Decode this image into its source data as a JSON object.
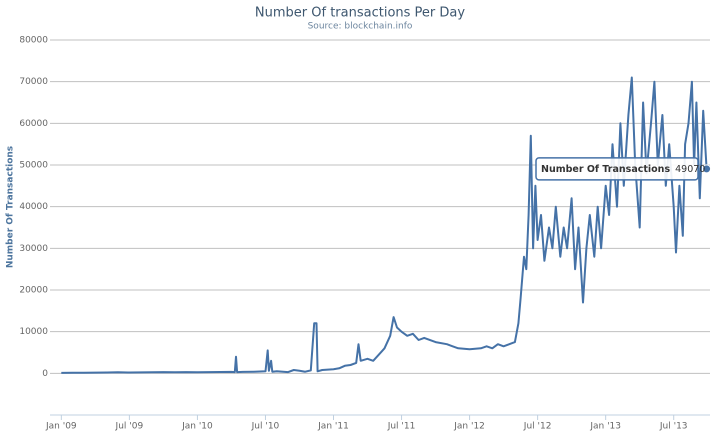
{
  "chart_data": {
    "type": "line",
    "title": "Number Of transactions Per Day",
    "subtitle": "Source: blockchain.info",
    "y_label": "Number Of Transactions",
    "x": [
      0,
      1,
      2,
      3,
      4,
      5,
      6,
      7,
      8,
      9,
      10,
      11,
      12,
      13,
      14,
      15,
      15.3,
      15.4,
      15.5,
      16,
      17,
      18,
      18.2,
      18.3,
      18.5,
      18.6,
      19,
      20,
      20.5,
      21,
      21.5,
      22,
      22.3,
      22.5,
      22.6,
      23,
      24,
      24.5,
      25,
      25.5,
      26,
      26.2,
      26.4,
      27,
      27.5,
      28,
      28.5,
      29,
      29.3,
      29.6,
      30,
      30.5,
      31,
      31.5,
      32,
      33,
      34,
      34.5,
      35,
      36,
      37,
      37.5,
      38,
      38.5,
      39,
      39.5,
      40,
      40.3,
      40.5,
      40.8,
      41,
      41.2,
      41.4,
      41.6,
      41.8,
      42,
      42.3,
      42.6,
      43,
      43.3,
      43.6,
      44,
      44.3,
      44.6,
      45,
      45.3,
      45.6,
      46,
      46.3,
      46.6,
      47,
      47.3,
      47.6,
      48,
      48.3,
      48.6,
      49,
      49.3,
      49.6,
      50,
      50.3,
      50.6,
      51,
      51.3,
      51.6,
      52,
      52.3,
      52.6,
      53,
      53.3,
      53.6,
      54,
      54.2,
      54.5,
      54.8,
      55,
      55.3,
      55.6,
      55.8,
      56,
      56.3,
      56.6,
      56.9
    ],
    "series": [
      {
        "name": "Number Of Transactions",
        "color": "#4572a7",
        "values": [
          100,
          120,
          150,
          180,
          200,
          250,
          200,
          230,
          250,
          300,
          280,
          300,
          250,
          300,
          320,
          350,
          300,
          4000,
          300,
          350,
          400,
          500,
          5500,
          600,
          3000,
          400,
          500,
          300,
          800,
          600,
          400,
          700,
          12000,
          12000,
          500,
          800,
          1000,
          1200,
          1800,
          2000,
          2500,
          7000,
          3000,
          3500,
          3000,
          4500,
          6000,
          9000,
          13500,
          11000,
          10000,
          9000,
          9500,
          8000,
          8500,
          7500,
          7000,
          6500,
          6000,
          5800,
          6000,
          6500,
          6000,
          7000,
          6500,
          7000,
          7500,
          12000,
          18000,
          28000,
          25000,
          38000,
          57000,
          30000,
          45000,
          32000,
          38000,
          27000,
          35000,
          30000,
          40000,
          28000,
          35000,
          30000,
          42000,
          25000,
          35000,
          17000,
          30000,
          38000,
          28000,
          40000,
          30000,
          45000,
          38000,
          55000,
          40000,
          60000,
          45000,
          62000,
          71000,
          50000,
          35000,
          65000,
          48000,
          60000,
          70000,
          50000,
          62000,
          45000,
          55000,
          40000,
          29000,
          45000,
          33000,
          55000,
          60000,
          70000,
          50000,
          65000,
          42000,
          63000,
          49070
        ]
      }
    ],
    "xlim": [
      -1,
      57.2
    ],
    "xticks": [
      {
        "value": 0,
        "label": "Jan '09"
      },
      {
        "value": 6,
        "label": "Jul '09"
      },
      {
        "value": 12,
        "label": "Jan '10"
      },
      {
        "value": 18,
        "label": "Jul '10"
      },
      {
        "value": 24,
        "label": "Jan '11"
      },
      {
        "value": 30,
        "label": "Jul '11"
      },
      {
        "value": 36,
        "label": "Jan '12"
      },
      {
        "value": 42,
        "label": "Jul '12"
      },
      {
        "value": 48,
        "label": "Jan '13"
      },
      {
        "value": 54,
        "label": "Jul '13"
      }
    ],
    "ylim": [
      -10000,
      80000
    ],
    "yticks": [
      0,
      10000,
      20000,
      30000,
      40000,
      50000,
      60000,
      70000,
      80000
    ],
    "grid": true
  }
}
